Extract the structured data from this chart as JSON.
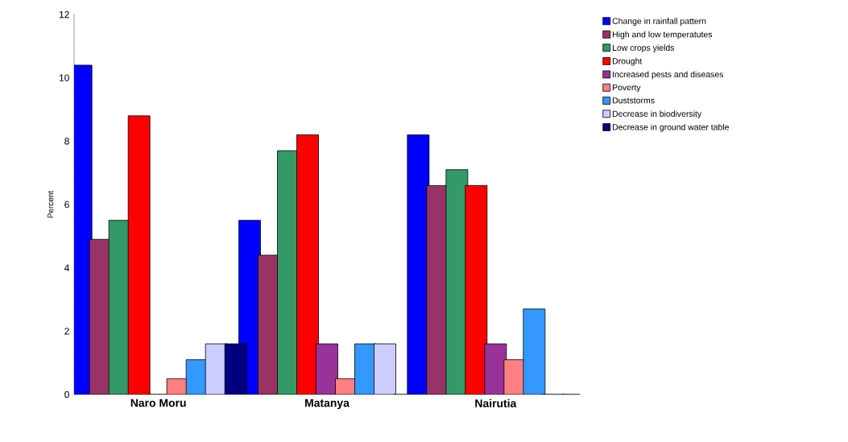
{
  "chart_data": {
    "type": "bar",
    "ylabel": "Percent",
    "categories": [
      "Naro Moru",
      "Matanya",
      "Nairutia"
    ],
    "series": [
      {
        "name": "Change in rainfall pattern",
        "color": "#0000ff",
        "values": [
          10.4,
          5.5,
          8.2
        ]
      },
      {
        "name": "High and low temperatutes",
        "color": "#993366",
        "values": [
          4.9,
          4.4,
          6.6
        ]
      },
      {
        "name": "Low crops yields",
        "color": "#339966",
        "values": [
          5.5,
          7.7,
          7.1
        ]
      },
      {
        "name": "Drought",
        "color": "#ff0000",
        "values": [
          8.8,
          8.2,
          6.6
        ]
      },
      {
        "name": "Increased pests and diseases",
        "color": "#993399",
        "values": [
          0,
          1.6,
          1.6
        ]
      },
      {
        "name": "Poverty",
        "color": "#ff8080",
        "values": [
          0.5,
          0.5,
          1.1
        ]
      },
      {
        "name": "Duststorms",
        "color": "#3399ff",
        "values": [
          1.1,
          1.6,
          2.7
        ]
      },
      {
        "name": "Decrease in biodiversity",
        "color": "#ccccff",
        "values": [
          1.6,
          1.6,
          0
        ]
      },
      {
        "name": "Decrease in ground water table",
        "color": "#000080",
        "values": [
          1.6,
          0,
          0
        ]
      }
    ],
    "ylim": [
      0,
      12
    ],
    "yticks": [
      0,
      2,
      4,
      6,
      8,
      10,
      12
    ],
    "grid": false,
    "legend": "right"
  }
}
